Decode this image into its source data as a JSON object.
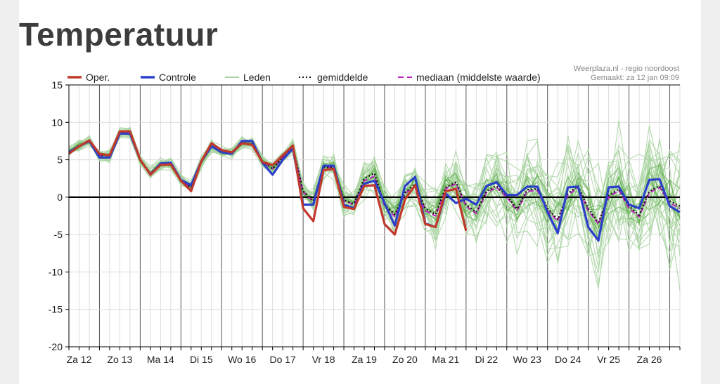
{
  "page": {
    "title": "Temperatuur"
  },
  "chart_data": {
    "type": "line",
    "title": "Temperatuur",
    "source_line1": "Weerplaza.nl - regio noordoost",
    "source_line2": "Gemaakt: za 12 jan 09:09",
    "ylim": [
      -20,
      15
    ],
    "yticks": [
      15,
      10,
      5,
      0,
      -5,
      -10,
      -15,
      -20
    ],
    "xlim": [
      0,
      60
    ],
    "day_labels": [
      "Za 12",
      "Zo 13",
      "Ma 14",
      "Di 15",
      "Wo 16",
      "Do 17",
      "Vr 18",
      "Za 19",
      "Zo 20",
      "Ma 21",
      "Di 22",
      "Wo 23",
      "Do 24",
      "Vr 25",
      "Za 26"
    ],
    "day_label_x": [
      1,
      5,
      9,
      13,
      17,
      21,
      25,
      29,
      33,
      37,
      41,
      45,
      49,
      53,
      57
    ],
    "legend": [
      {
        "label": "Oper.",
        "color": "#c0392b",
        "style": "solid"
      },
      {
        "label": "Controle",
        "color": "#2b3fc9",
        "style": "solid"
      },
      {
        "label": "Leden",
        "color": "#a8d3a0",
        "style": "solid"
      },
      {
        "label": "gemiddelde",
        "color": "#111111",
        "style": "dotted"
      },
      {
        "label": "mediaan (middelste waarde)",
        "color": "#c020c0",
        "style": "dashed"
      }
    ],
    "x": [
      0,
      1,
      2,
      3,
      4,
      5,
      6,
      7,
      8,
      9,
      10,
      11,
      12,
      13,
      14,
      15,
      16,
      17,
      18,
      19,
      20,
      21,
      22,
      23,
      24,
      25,
      26,
      27,
      28,
      29,
      30,
      31,
      32,
      33,
      34,
      35,
      36,
      37,
      38,
      39,
      40,
      41,
      42,
      43,
      44,
      45,
      46,
      47,
      48,
      49,
      50,
      51,
      52,
      53,
      54,
      55,
      56,
      57,
      58,
      59,
      60
    ],
    "series": [
      {
        "name": "Oper.",
        "color": "#c0392b",
        "width": 3.2,
        "values": [
          5.8,
          6.8,
          7.6,
          5.8,
          5.6,
          8.8,
          8.8,
          5.0,
          3.0,
          4.3,
          4.4,
          2.2,
          0.8,
          4.8,
          7.2,
          6.3,
          6.0,
          7.2,
          7.0,
          4.7,
          4.3,
          5.6,
          6.9,
          -1.5,
          -3.2,
          3.6,
          3.8,
          -1.3,
          -1.6,
          1.5,
          1.6,
          -3.6,
          -5.0,
          -0.3,
          1.6,
          -3.6,
          -4.0,
          0.8,
          1.1,
          -4.5,
          null,
          null,
          null,
          null,
          null,
          null,
          null,
          null,
          null,
          null,
          null,
          null,
          null,
          null,
          null,
          null,
          null,
          null,
          null,
          null,
          null
        ]
      },
      {
        "name": "Controle",
        "color": "#2b3fc9",
        "width": 3.2,
        "values": [
          6.0,
          6.8,
          7.5,
          5.3,
          5.3,
          8.5,
          8.5,
          5.0,
          3.0,
          4.5,
          4.6,
          2.3,
          1.6,
          4.8,
          6.8,
          6.0,
          5.8,
          7.5,
          7.5,
          4.6,
          3.0,
          5.0,
          6.5,
          -1.0,
          -1.0,
          4.2,
          4.2,
          -1.0,
          -1.5,
          1.8,
          2.2,
          -0.8,
          -3.8,
          1.5,
          2.7,
          -3.5,
          -4.0,
          0.5,
          -0.8,
          -0.2,
          -1.0,
          1.5,
          2.0,
          0.3,
          0.3,
          1.4,
          1.4,
          -2.0,
          -4.8,
          1.3,
          1.4,
          -4.0,
          -5.8,
          1.3,
          1.4,
          -1.0,
          -1.5,
          2.3,
          2.4,
          -1.2,
          -2.0
        ]
      },
      {
        "name": "gemiddelde",
        "color": "#111111",
        "width": 2.2,
        "dash": "2,3",
        "values": [
          6.0,
          6.9,
          7.4,
          5.6,
          5.6,
          8.6,
          8.6,
          4.9,
          3.2,
          4.4,
          4.4,
          2.2,
          1.3,
          4.7,
          6.8,
          6.0,
          5.9,
          7.2,
          7.1,
          4.8,
          3.8,
          5.3,
          6.7,
          0.8,
          -0.5,
          4.0,
          4.0,
          -0.4,
          -0.9,
          2.5,
          3.2,
          -1.0,
          -2.3,
          0.6,
          1.8,
          -1.5,
          -2.3,
          1.3,
          2.0,
          -1.0,
          -2.0,
          0.8,
          1.5,
          0.2,
          -1.6,
          1.0,
          1.1,
          -1.5,
          -3.0,
          0.5,
          1.5,
          -1.5,
          -3.4,
          0.2,
          1.1,
          -1.2,
          -2.4,
          0.8,
          1.5,
          -0.5,
          -1.2
        ]
      },
      {
        "name": "mediaan (middelste waarde)",
        "color": "#c020c0",
        "width": 2.0,
        "dash": "7,4",
        "values": [
          6.0,
          6.9,
          7.4,
          5.6,
          5.6,
          8.6,
          8.6,
          4.9,
          3.2,
          4.4,
          4.4,
          2.2,
          1.3,
          4.7,
          6.8,
          6.0,
          5.9,
          7.2,
          7.1,
          4.8,
          3.8,
          5.3,
          6.7,
          0.7,
          -0.6,
          4.0,
          4.0,
          -0.5,
          -1.0,
          2.2,
          2.8,
          -1.2,
          -2.6,
          0.5,
          1.5,
          -1.8,
          -2.5,
          1.1,
          1.8,
          -1.2,
          -2.2,
          0.6,
          1.3,
          0.0,
          -1.8,
          0.8,
          0.9,
          -1.8,
          -3.2,
          0.3,
          1.3,
          -1.8,
          -3.6,
          0.0,
          0.9,
          -1.5,
          -2.6,
          0.6,
          1.3,
          -0.8,
          -1.5
        ]
      }
    ],
    "members": {
      "name": "Leden",
      "color": "#a8d3a0",
      "count": 26,
      "spread_growth": 0.55
    }
  }
}
